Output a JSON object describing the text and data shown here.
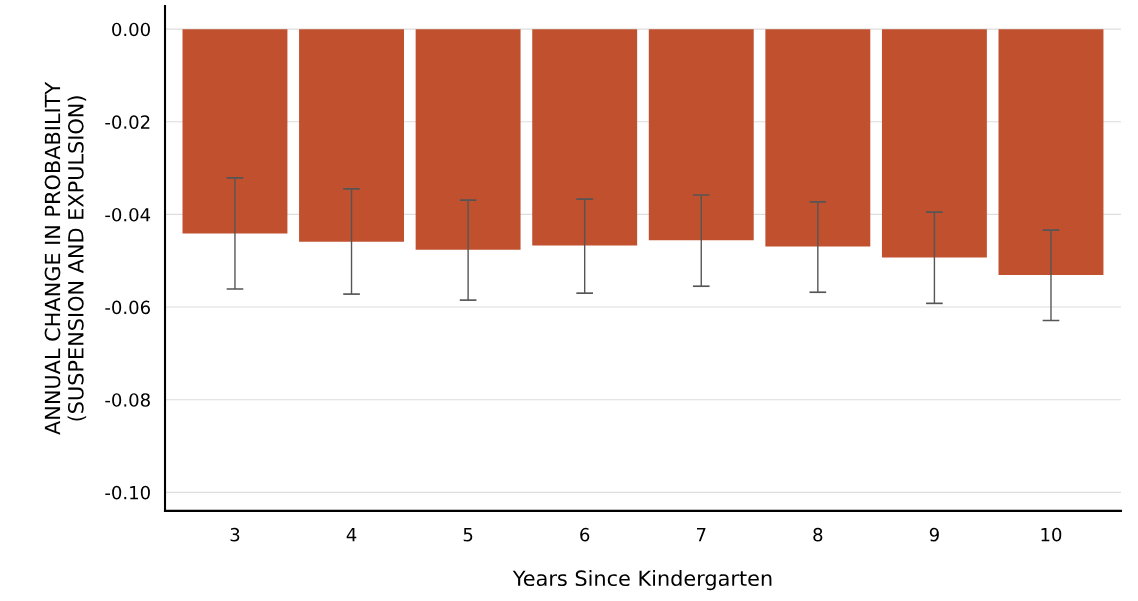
{
  "chart_data": {
    "type": "bar",
    "xlabel": "Years Since Kindergarten",
    "ylabel": "ANNUAL CHANGE IN PROBABILITY\n(SUSPENSION AND EXPULSION)",
    "categories": [
      "3",
      "4",
      "5",
      "6",
      "7",
      "8",
      "9",
      "10"
    ],
    "values": [
      -0.0441,
      -0.0459,
      -0.0476,
      -0.0467,
      -0.0456,
      -0.0469,
      -0.0493,
      -0.0531
    ],
    "errors": [
      [
        -0.0561,
        -0.0321
      ],
      [
        -0.0572,
        -0.0345
      ],
      [
        -0.0585,
        -0.0369
      ],
      [
        -0.057,
        -0.0367
      ],
      [
        -0.0555,
        -0.0358
      ],
      [
        -0.0568,
        -0.0373
      ],
      [
        -0.0592,
        -0.0395
      ],
      [
        -0.0629,
        -0.0434
      ]
    ],
    "color": "#c1502e",
    "ylim": [
      -0.104,
      0.005
    ],
    "yticks": [
      {
        "value": 0,
        "label": "0.00"
      },
      {
        "value": -0.02,
        "label": "-0.02"
      },
      {
        "value": -0.04,
        "label": "-0.04"
      },
      {
        "value": -0.06,
        "label": "-0.06"
      },
      {
        "value": -0.08,
        "label": "-0.08"
      },
      {
        "value": -0.1,
        "label": "-0.10"
      }
    ],
    "grid": "y"
  }
}
